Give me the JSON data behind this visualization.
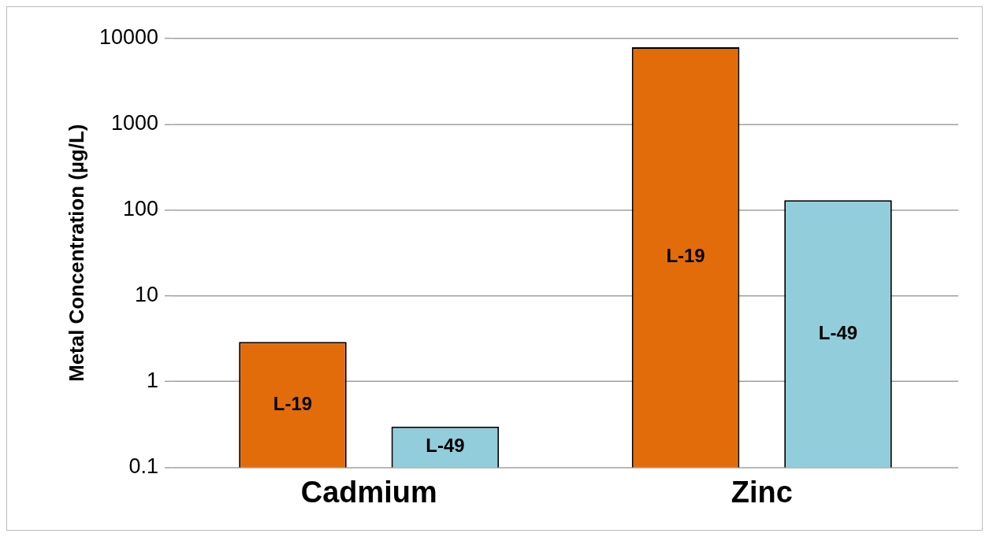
{
  "chart_data": {
    "type": "bar",
    "ylabel": "Metal Concentration (µg/L)",
    "categories": [
      "Cadmium",
      "Zinc"
    ],
    "series": [
      {
        "name": "L-19",
        "color": "#e36c0a",
        "values": [
          2.9,
          7900
        ]
      },
      {
        "name": "L-49",
        "color": "#92cddc",
        "values": [
          0.3,
          130
        ]
      }
    ],
    "log": true,
    "ylim": [
      0.1,
      10000
    ],
    "yticks": [
      0.1,
      1,
      10,
      100,
      1000,
      10000
    ],
    "grid": "y"
  }
}
